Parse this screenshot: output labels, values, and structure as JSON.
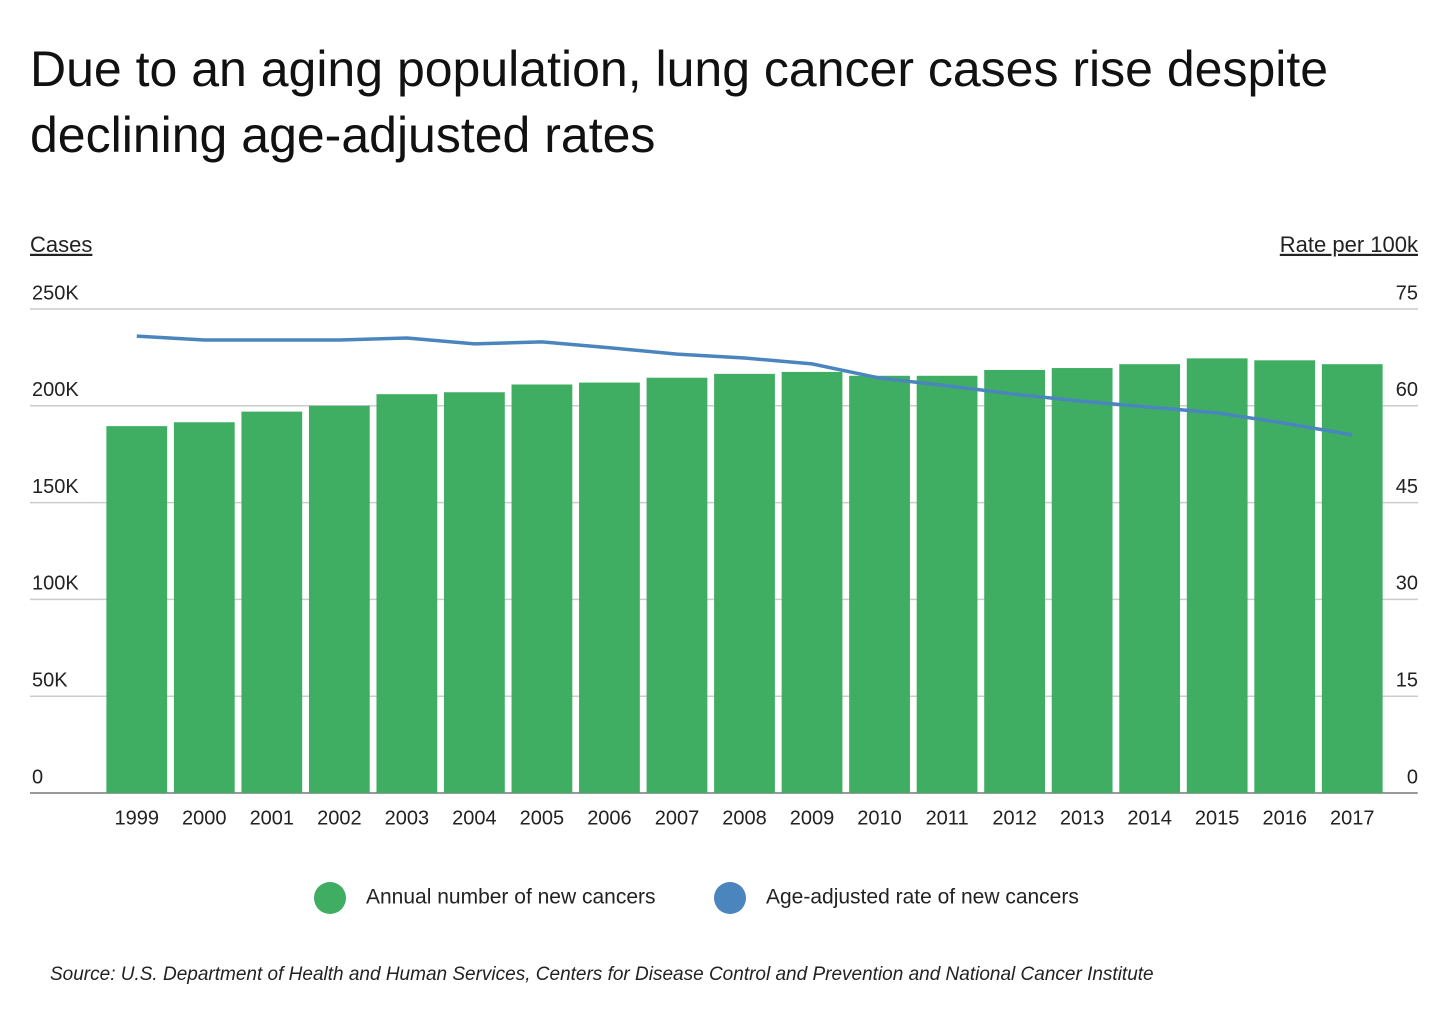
{
  "chart_data": {
    "type": "bar_line",
    "title": "Due to an aging population, lung cancer cases rise despite declining age-adjusted rates",
    "y_label": "Cases",
    "y2_label": "Rate per 100k",
    "categories": [
      "1999",
      "2000",
      "2001",
      "2002",
      "2003",
      "2004",
      "2005",
      "2006",
      "2007",
      "2008",
      "2009",
      "2010",
      "2011",
      "2012",
      "2013",
      "2014",
      "2015",
      "2016",
      "2017"
    ],
    "series": [
      {
        "name": "Annual number of new cancers",
        "type": "bar",
        "color": "#3fad62",
        "values": [
          189500,
          191500,
          197000,
          200000,
          206000,
          207000,
          211000,
          212000,
          214500,
          216500,
          217500,
          215500,
          215500,
          218500,
          219500,
          221500,
          224500,
          223500,
          221500
        ]
      },
      {
        "name": "Age-adjusted rate of new cancers",
        "type": "line",
        "axis": "y2",
        "color": "#4a86bd",
        "values": [
          70.8,
          70.2,
          70.2,
          70.2,
          70.5,
          69.6,
          69.9,
          69.0,
          68.0,
          67.4,
          66.5,
          64.3,
          63.1,
          61.8,
          60.7,
          59.8,
          58.9,
          57.3,
          55.5
        ]
      }
    ],
    "ylim": [
      0,
      250000
    ],
    "yticks": [
      0,
      {
        "value": 50000,
        "label": "50K"
      },
      {
        "value": 100000,
        "label": "100K"
      },
      {
        "value": 150000,
        "label": "150K"
      },
      {
        "value": 200000,
        "label": "200K"
      },
      {
        "value": 250000,
        "label": "250K"
      }
    ],
    "y2lim": [
      0,
      75
    ],
    "y2ticks": [
      0,
      15,
      30,
      45,
      60,
      75
    ],
    "grid": true,
    "legend": "bottom",
    "source": "Source:  U.S. Department of Health and Human Services, Centers for Disease Control and Prevention and National Cancer Institute"
  }
}
